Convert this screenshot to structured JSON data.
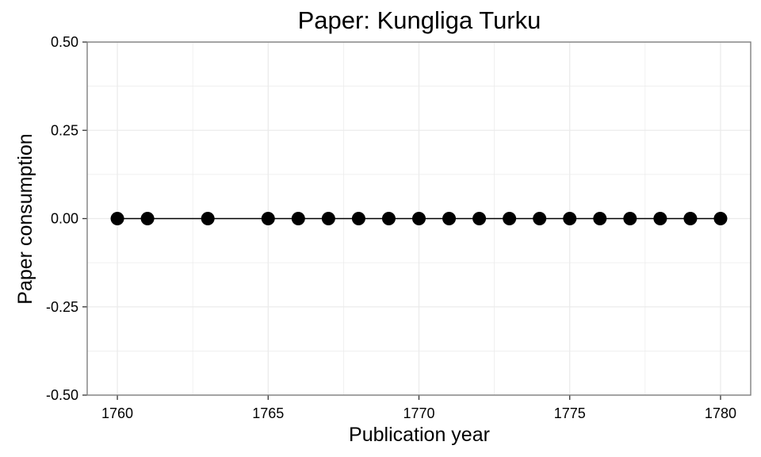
{
  "chart_data": {
    "type": "line",
    "title": "Paper: Kungliga Turku",
    "xlabel": "Publication year",
    "ylabel": "Paper consumption",
    "xlim": [
      1759,
      1781
    ],
    "ylim": [
      -0.5,
      0.5
    ],
    "x_ticks": [
      1760,
      1765,
      1770,
      1775,
      1780
    ],
    "x_tick_labels": [
      "1760",
      "1765",
      "1770",
      "1775",
      "1780"
    ],
    "y_ticks": [
      -0.5,
      -0.25,
      0,
      0.25,
      0.5
    ],
    "y_tick_labels": [
      "-0.50",
      "-0.25",
      "0.00",
      "0.25",
      "0.50"
    ],
    "grid": true,
    "legend": "none",
    "series": [
      {
        "x": [
          1760,
          1761,
          1763,
          1765,
          1766,
          1767,
          1768,
          1769,
          1770,
          1771,
          1772,
          1773,
          1774,
          1775,
          1776,
          1777,
          1778,
          1779,
          1780
        ],
        "values": [
          0,
          0,
          0,
          0,
          0,
          0,
          0,
          0,
          0,
          0,
          0,
          0,
          0,
          0,
          0,
          0,
          0,
          0,
          0
        ],
        "color": "#000000"
      }
    ],
    "colors": {
      "line": "#000000",
      "points": "#000000",
      "grid": "#ebebeb",
      "panel_border": "#7f7f7f",
      "background": "#ffffff"
    }
  }
}
